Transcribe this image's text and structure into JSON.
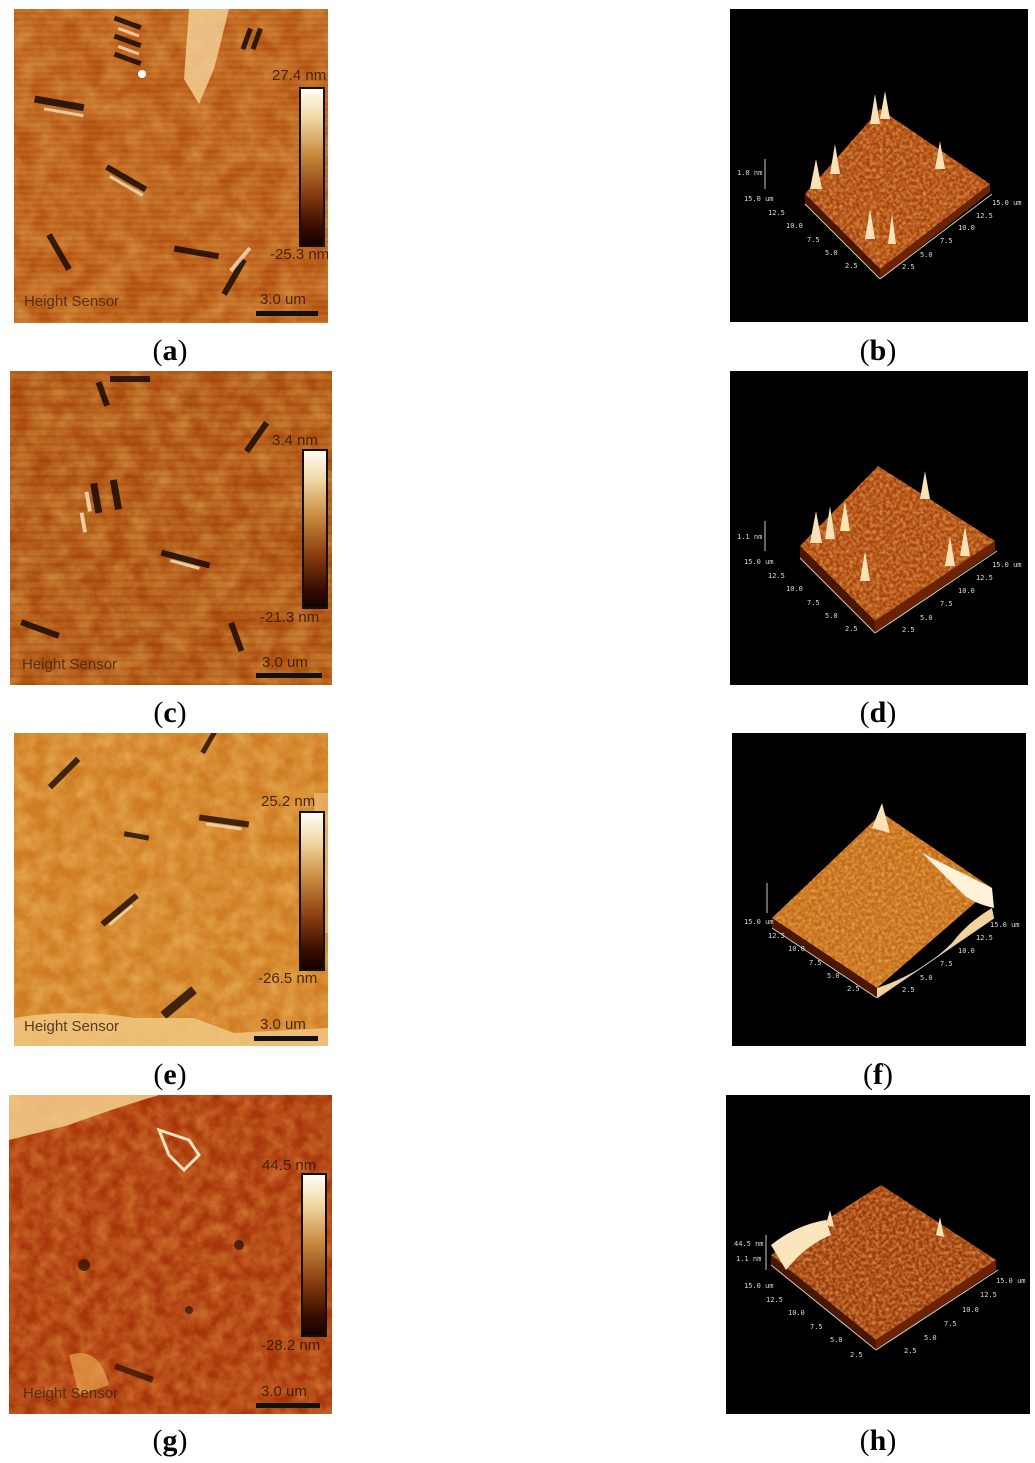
{
  "panels": [
    {
      "id": "a",
      "caption": "a",
      "colorbar_max": "27.4 nm",
      "colorbar_min": "-25.3 nm",
      "channel": "Height Sensor",
      "scale": "3.0 um"
    },
    {
      "id": "b",
      "caption": "b"
    },
    {
      "id": "c",
      "caption": "c",
      "colorbar_max": "3.4 nm",
      "colorbar_min": "-21.3 nm",
      "channel": "Height Sensor",
      "scale": "3.0 um"
    },
    {
      "id": "d",
      "caption": "d"
    },
    {
      "id": "e",
      "caption": "e",
      "colorbar_max": "25.2 nm",
      "colorbar_min": "-26.5 nm",
      "channel": "Height Sensor",
      "scale": "3.0 um"
    },
    {
      "id": "f",
      "caption": "f"
    },
    {
      "id": "g",
      "caption": "g",
      "colorbar_max": "44.5 nm",
      "colorbar_min": "-28.2 nm",
      "channel": "Height Sensor",
      "scale": "3.0 um"
    },
    {
      "id": "h",
      "caption": "h"
    }
  ],
  "axis_3d": {
    "ticks_left": [
      "15.0 um",
      "12.5",
      "10.0",
      "7.5",
      "5.0",
      "2.5"
    ],
    "ticks_right": [
      "15.0 um",
      "12.5",
      "10.0",
      "7.5",
      "5.0",
      "2.5"
    ],
    "z_labels": [
      "1.0 nm",
      "1.1 nm",
      "",
      "44.5 nm"
    ]
  },
  "colors": {
    "afm_base": "#b4520f",
    "afm_light": "#e2922f",
    "afm_dark": "#6a2205",
    "bg_3d": "#000000"
  }
}
